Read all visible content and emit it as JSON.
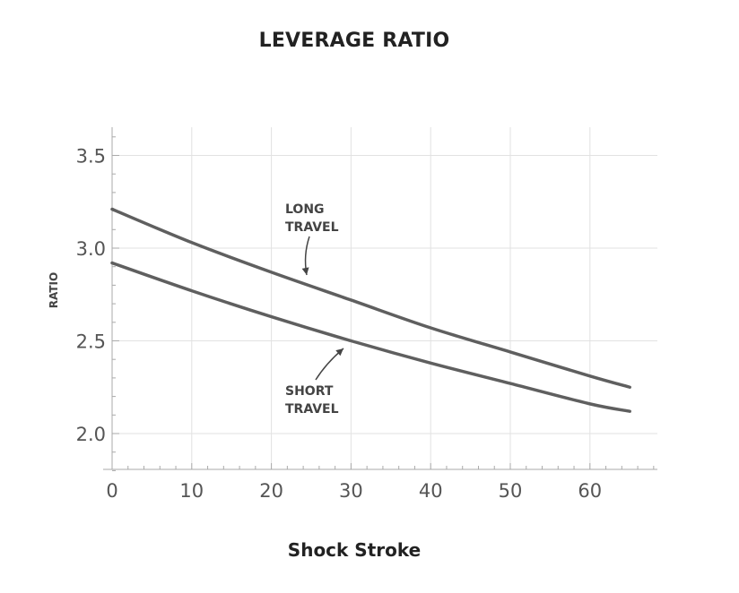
{
  "chart_data": {
    "type": "line",
    "title": "LEVERAGE RATIO",
    "xlabel": "Shock Stroke",
    "ylabel": "RATIO",
    "xlim": [
      0,
      68
    ],
    "ylim": [
      1.8,
      3.65
    ],
    "xticks": [
      0,
      10,
      20,
      30,
      40,
      50,
      60
    ],
    "yticks": [
      2.0,
      2.5,
      3.0,
      3.5
    ],
    "xtick_labels": [
      "0",
      "10",
      "20",
      "30",
      "40",
      "50",
      "60"
    ],
    "ytick_labels": [
      "2.0",
      "2.5",
      "3.0",
      "3.5"
    ],
    "grid": true,
    "series": [
      {
        "name": "LONG TRAVEL",
        "color": "#5f5f5f",
        "x": [
          0,
          10,
          20,
          30,
          40,
          50,
          60,
          65
        ],
        "y": [
          3.21,
          3.03,
          2.87,
          2.72,
          2.57,
          2.44,
          2.31,
          2.25
        ]
      },
      {
        "name": "SHORT TRAVEL",
        "color": "#5f5f5f",
        "x": [
          0,
          10,
          20,
          30,
          40,
          50,
          60,
          65
        ],
        "y": [
          2.92,
          2.77,
          2.63,
          2.5,
          2.38,
          2.27,
          2.16,
          2.12
        ]
      }
    ],
    "annotations": [
      {
        "lines": [
          "LONG",
          "TRAVEL"
        ],
        "points_to": [
          24.5,
          2.81
        ]
      },
      {
        "lines": [
          "SHORT",
          "TRAVEL"
        ],
        "points_to": [
          29.5,
          2.46
        ]
      }
    ]
  }
}
